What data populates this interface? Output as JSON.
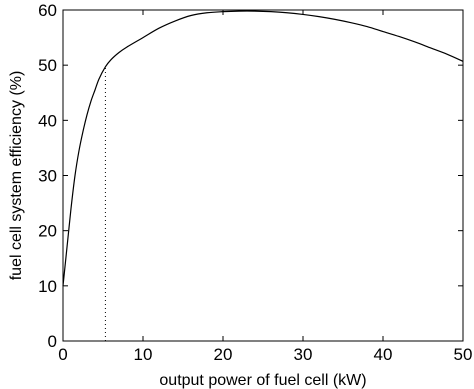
{
  "chart_data": {
    "type": "line",
    "title": "",
    "xlabel": "output power of fuel cell (kW)",
    "ylabel": "fuel cell system efficiency (%)",
    "xlim": [
      0,
      50
    ],
    "ylim": [
      0,
      60
    ],
    "xticks": [
      0,
      10,
      20,
      30,
      40,
      50
    ],
    "yticks": [
      0,
      10,
      20,
      30,
      40,
      50,
      60
    ],
    "grid": false,
    "series": [
      {
        "color": "#000000",
        "style": "solid",
        "x": [
          0,
          0.5,
          1,
          1.5,
          2,
          2.5,
          3,
          3.5,
          4,
          4.5,
          5.3,
          6,
          7,
          8,
          10,
          12,
          14,
          16,
          18,
          20,
          22,
          24,
          26,
          28,
          30,
          32,
          34,
          36,
          38,
          40,
          42,
          44,
          46,
          48,
          50
        ],
        "y": [
          10,
          17,
          24,
          30,
          34.5,
          38,
          41,
          43.5,
          45.5,
          47.5,
          49.7,
          51,
          52.3,
          53.3,
          55,
          56.7,
          58,
          59,
          59.5,
          59.7,
          59.8,
          59.8,
          59.7,
          59.5,
          59.2,
          58.8,
          58.3,
          57.7,
          57,
          56.1,
          55.2,
          54.2,
          53.1,
          52,
          50.7
        ]
      }
    ],
    "annotations": [
      {
        "type": "vertical-dotted-line",
        "x": 5.3,
        "y_from": 0,
        "y_to": 49.7
      }
    ]
  }
}
